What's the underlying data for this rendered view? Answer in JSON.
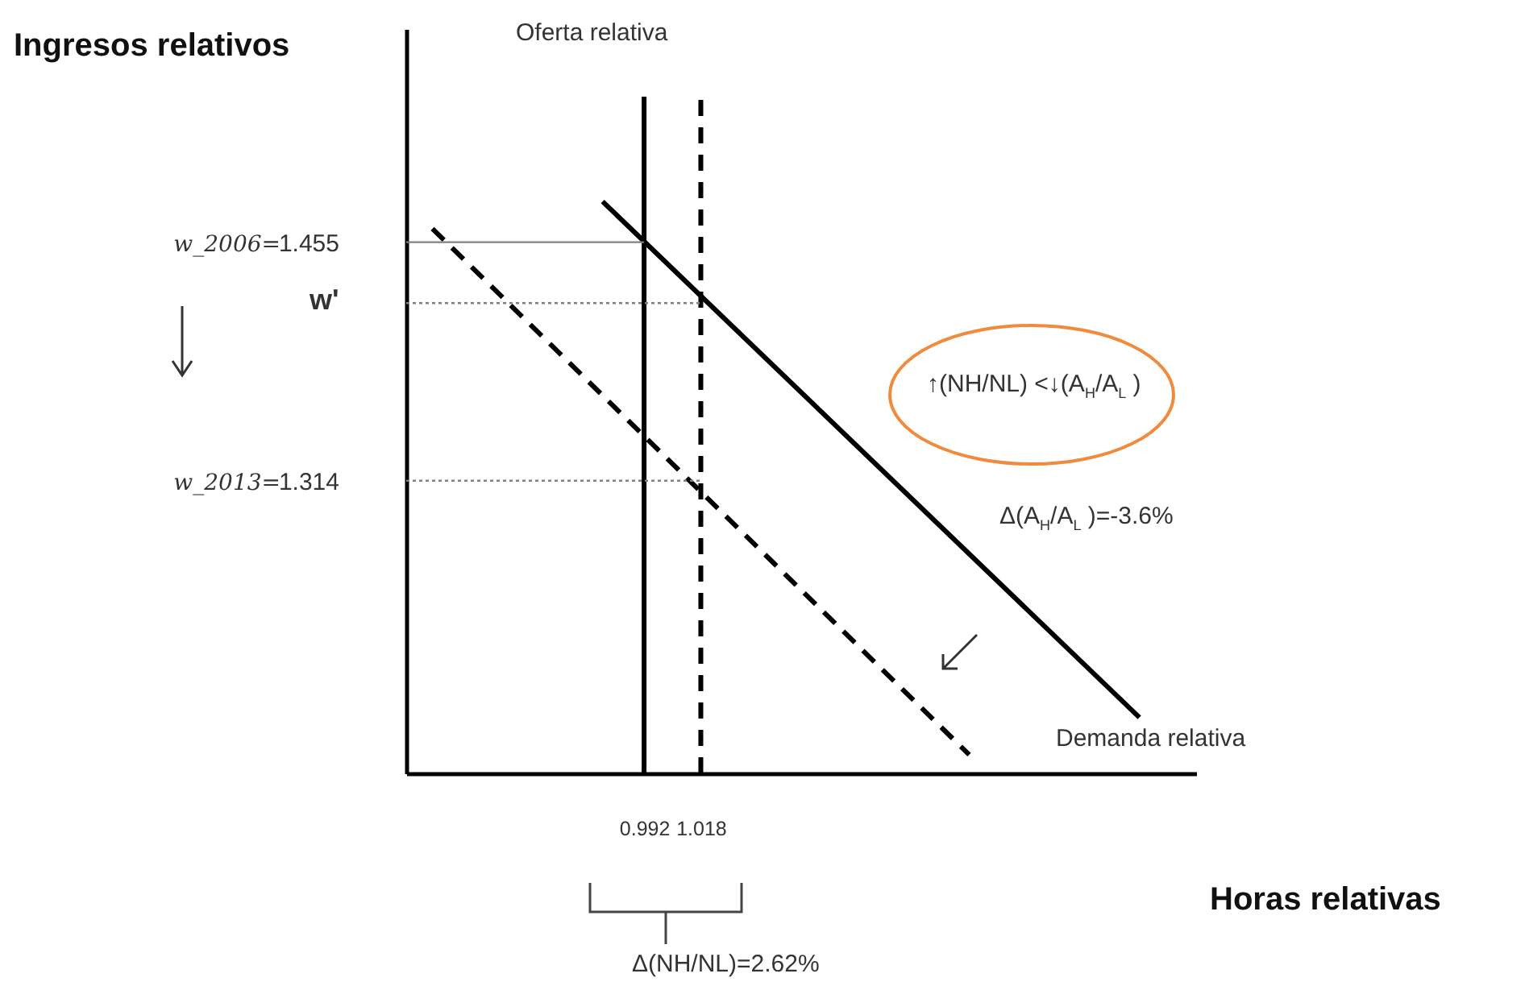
{
  "chart_data": {
    "type": "line",
    "ylabel": "Ingresos relativos",
    "xlabel": "Horas relativas",
    "xlim": [
      0.883,
      1.245
    ],
    "ylim": [
      1.141,
      1.581
    ],
    "xticks": [
      0.992,
      1.018
    ],
    "yticks": [
      1.455,
      1.314
    ],
    "grid": false,
    "series": [
      {
        "color": "#000000",
        "line_style": "solid",
        "x": [
          0.973,
          1.219
        ],
        "values": [
          1.479,
          1.174
        ]
      },
      {
        "color": "#000000",
        "line_style": "dashed",
        "x": [
          0.895,
          1.141
        ],
        "values": [
          1.463,
          1.152
        ]
      },
      {
        "color": "#000000",
        "line_style": "solid",
        "x": [
          0.992,
          0.992
        ],
        "values": [
          1.141,
          1.541
        ]
      },
      {
        "color": "#000000",
        "line_style": "dashed",
        "x": [
          1.018,
          1.018
        ],
        "values": [
          1.141,
          1.541
        ]
      },
      {
        "color": "#808080",
        "line_style": "solid",
        "x": [
          0.883,
          0.992
        ],
        "values": [
          1.455,
          1.455
        ]
      },
      {
        "color": "#808080",
        "line_style": "dotted",
        "x": [
          0.883,
          1.018
        ],
        "values": [
          1.419,
          1.419
        ]
      },
      {
        "color": "#808080",
        "line_style": "dotted",
        "x": [
          0.883,
          1.018
        ],
        "values": [
          1.314,
          1.314
        ]
      }
    ],
    "annotations": [
      "w_2006=",
      "w'",
      "w_2013=",
      "Oferta relativa",
      "Demanda relativa",
      "↑(NH/NL) <↓(A$_{H}$/A$_{L}$ )",
      "Δ(A$_{H}$/A$_{L}$ )=-3.6%",
      "Δ(NH/NL)=2.62%"
    ]
  }
}
